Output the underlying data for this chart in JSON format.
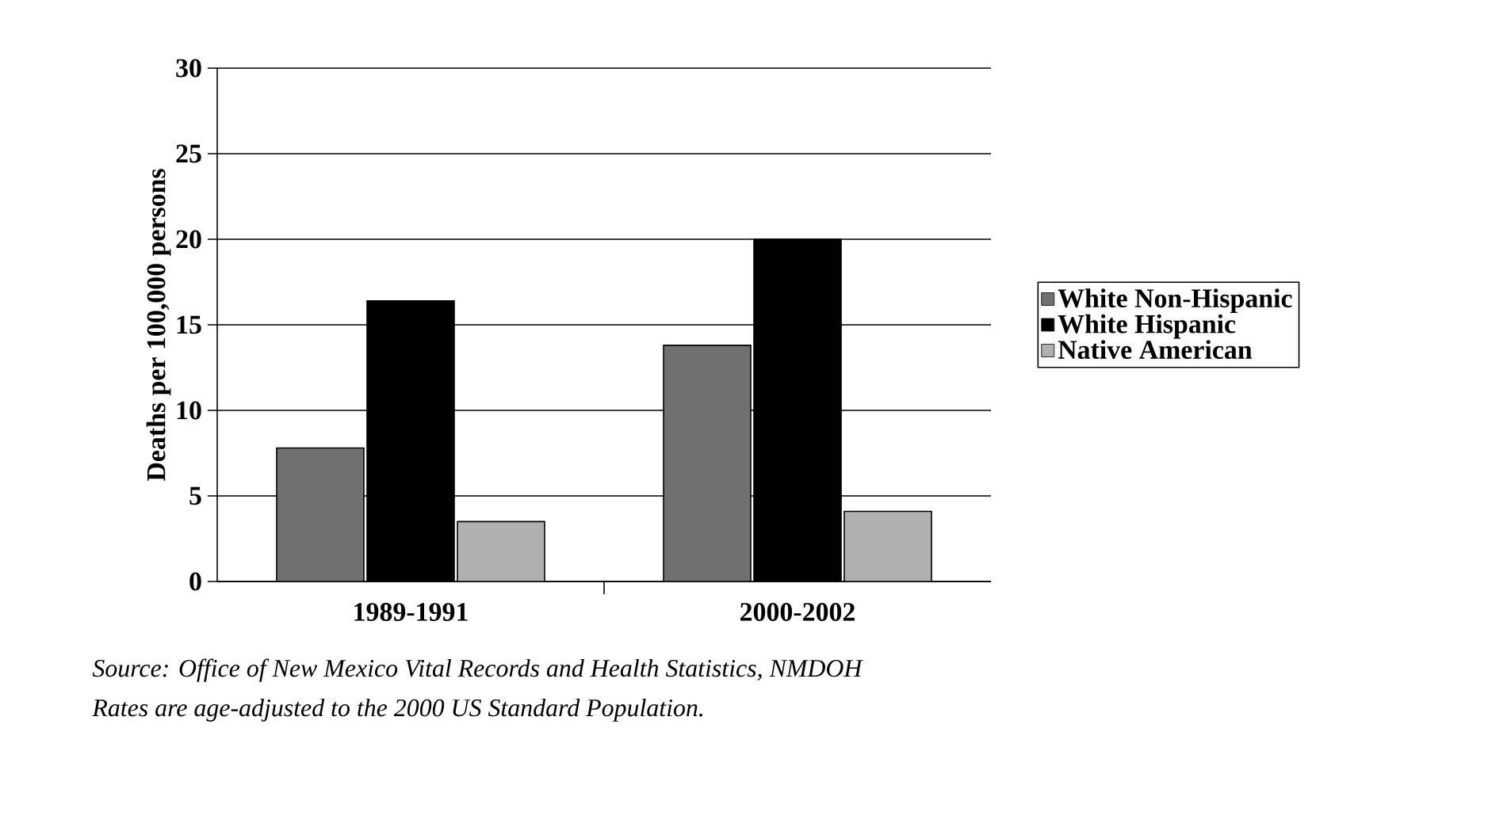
{
  "chart_data": {
    "type": "bar",
    "categories": [
      "1989-1991",
      "2000-2002"
    ],
    "series": [
      {
        "name": "White Non-Hispanic",
        "color": "#707070",
        "values": [
          7.8,
          13.8
        ]
      },
      {
        "name": "White Hispanic",
        "color": "#000000",
        "values": [
          16.4,
          20.0
        ]
      },
      {
        "name": "Native American",
        "color": "#b0b0b0",
        "values": [
          3.5,
          4.1
        ]
      }
    ],
    "ylabel": "Deaths per 100,000 persons",
    "ylim": [
      0,
      30
    ],
    "yticks": [
      0,
      5,
      10,
      15,
      20,
      25,
      30
    ],
    "grid": "y",
    "legend": "right",
    "annotations": [
      "*Source: Office of New Mexico Vital Records and Health Statistics, NMDOH*",
      "*Rates are age-adjusted to the 2000 US Standard Population.*"
    ]
  }
}
